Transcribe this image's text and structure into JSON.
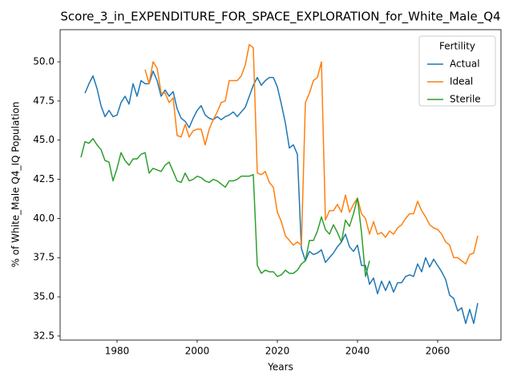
{
  "chart_data": {
    "type": "line",
    "title": "Score_3_in_EXPENDITURE_FOR_SPACE_EXPLORATION_for_White_Male_Q4",
    "xlabel": "Years",
    "ylabel": "% of White_Male Q4_IQ Population",
    "legend_title": "Fertility",
    "legend": "upper right",
    "grid": false,
    "x": [
      1971,
      1972,
      1973,
      1974,
      1975,
      1976,
      1977,
      1978,
      1979,
      1980,
      1981,
      1982,
      1983,
      1984,
      1985,
      1986,
      1987,
      1988,
      1989,
      1990,
      1991,
      1992,
      1993,
      1994,
      1995,
      1996,
      1997,
      1998,
      1999,
      2000,
      2001,
      2002,
      2003,
      2004,
      2005,
      2006,
      2007,
      2008,
      2009,
      2010,
      2011,
      2012,
      2013,
      2014,
      2015,
      2016,
      2017,
      2018,
      2019,
      2020,
      2021,
      2022,
      2023,
      2024,
      2025,
      2026,
      2027,
      2028,
      2029,
      2030,
      2031,
      2032,
      2033,
      2034,
      2035,
      2036,
      2037,
      2038,
      2039,
      2040,
      2041,
      2042,
      2043,
      2044,
      2045,
      2046,
      2047,
      2048,
      2049,
      2050,
      2051,
      2052,
      2053,
      2054,
      2055,
      2056,
      2057,
      2058,
      2059,
      2060,
      2061,
      2062,
      2063,
      2064,
      2065,
      2066,
      2067,
      2068,
      2069,
      2070
    ],
    "series": [
      {
        "name": "Actual",
        "color": "#1f77b4",
        "values": [
          null,
          48.0,
          48.6,
          49.1,
          48.3,
          47.2,
          46.5,
          46.9,
          46.5,
          46.6,
          47.4,
          47.8,
          47.3,
          48.6,
          47.8,
          48.8,
          48.6,
          48.6,
          49.4,
          48.8,
          47.8,
          48.2,
          47.8,
          48.1,
          47.0,
          46.4,
          46.2,
          45.8,
          46.4,
          46.9,
          47.2,
          46.6,
          46.4,
          46.3,
          46.5,
          46.3,
          46.5,
          46.6,
          46.8,
          46.5,
          46.8,
          47.1,
          47.8,
          48.5,
          49.0,
          48.5,
          48.8,
          49.0,
          49.0,
          48.4,
          47.3,
          46.1,
          44.5,
          44.7,
          44.1,
          38.1,
          37.3,
          37.9,
          37.7,
          37.8,
          38.0,
          37.2,
          37.5,
          37.8,
          38.2,
          38.5,
          39.0,
          38.2,
          37.9,
          38.3,
          37.0,
          37.0,
          35.8,
          36.2,
          35.2,
          36.0,
          35.4,
          36.0,
          35.3,
          35.9,
          35.9,
          36.3,
          36.4,
          36.3,
          37.1,
          36.6,
          37.5,
          36.9,
          37.4,
          37.0,
          36.6,
          36.1,
          35.1,
          34.9,
          34.1,
          34.3,
          33.3,
          34.2,
          33.3,
          34.6
        ]
      },
      {
        "name": "Ideal",
        "color": "#ff7f0e",
        "values": [
          null,
          null,
          null,
          null,
          null,
          null,
          null,
          null,
          null,
          null,
          null,
          null,
          null,
          null,
          null,
          null,
          49.5,
          48.6,
          50.0,
          49.6,
          48.0,
          48.0,
          47.4,
          47.7,
          45.3,
          45.2,
          46.0,
          45.2,
          45.6,
          45.7,
          45.7,
          44.7,
          45.7,
          46.3,
          46.8,
          47.4,
          47.5,
          48.8,
          48.8,
          48.8,
          49.1,
          49.8,
          51.1,
          50.9,
          42.9,
          42.8,
          43.0,
          42.3,
          42.0,
          40.4,
          39.8,
          38.9,
          38.6,
          38.3,
          38.5,
          38.3,
          47.4,
          48.0,
          48.8,
          49.0,
          50.0,
          39.9,
          40.5,
          40.5,
          40.9,
          40.4,
          41.5,
          40.4,
          40.9,
          41.3,
          40.3,
          40.0,
          39.0,
          39.8,
          39.0,
          39.1,
          38.8,
          39.2,
          39.0,
          39.4,
          39.6,
          40.0,
          40.3,
          40.3,
          41.1,
          40.5,
          40.1,
          39.6,
          39.4,
          39.3,
          39.0,
          38.5,
          38.3,
          37.5,
          37.5,
          37.3,
          37.1,
          37.7,
          37.8,
          38.9
        ]
      },
      {
        "name": "Sterile",
        "color": "#2ca02c",
        "values": [
          43.9,
          44.9,
          44.8,
          45.1,
          44.7,
          44.4,
          43.7,
          43.6,
          42.4,
          43.2,
          44.2,
          43.7,
          43.4,
          43.8,
          43.8,
          44.1,
          44.2,
          42.9,
          43.2,
          43.1,
          43.0,
          43.4,
          43.6,
          43.0,
          42.4,
          42.3,
          42.9,
          42.4,
          42.5,
          42.7,
          42.6,
          42.4,
          42.3,
          42.5,
          42.4,
          42.2,
          42.0,
          42.4,
          42.4,
          42.5,
          42.7,
          42.7,
          42.7,
          42.8,
          37.0,
          36.5,
          36.7,
          36.6,
          36.6,
          36.3,
          36.4,
          36.7,
          36.5,
          36.5,
          36.7,
          37.1,
          37.3,
          38.6,
          38.6,
          39.2,
          40.1,
          39.3,
          39.0,
          39.6,
          39.1,
          38.5,
          39.9,
          39.5,
          40.3,
          41.3,
          39.1,
          36.3,
          37.3,
          null,
          null,
          null,
          null,
          null,
          null,
          null,
          null,
          null,
          null,
          null,
          null,
          null,
          null,
          null,
          null,
          null,
          null,
          null,
          null,
          null,
          null,
          null,
          null,
          null,
          null,
          null
        ]
      }
    ],
    "xlim": [
      1965.8,
      2075.8
    ],
    "xticks": [
      1980,
      2000,
      2020,
      2040,
      2060
    ],
    "ylim": [
      32.24,
      52.05
    ],
    "yticks": [
      32.5,
      {
        "value": 35,
        "label": "35.0"
      },
      37.5,
      {
        "value": 40,
        "label": "40.0"
      },
      42.5,
      {
        "value": 45,
        "label": "45.0"
      },
      47.5,
      {
        "value": 50,
        "label": "50.0"
      }
    ]
  }
}
